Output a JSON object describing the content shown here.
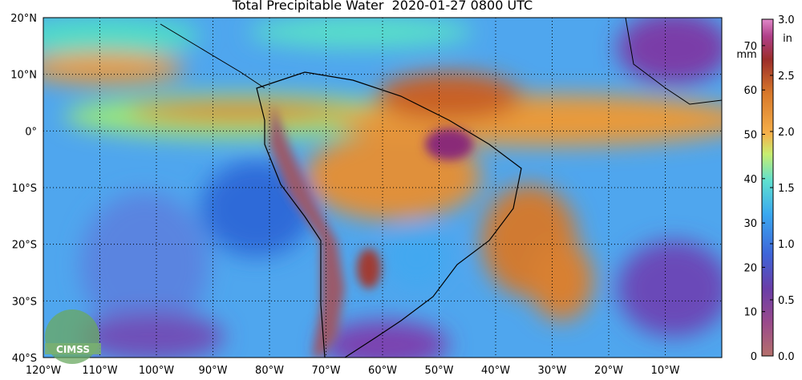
{
  "title": "Total Precipitable Water  2020-01-27 0800 UTC",
  "lat_labels": [
    "20°N",
    "10°N",
    "0°",
    "10°S",
    "20°S",
    "30°S",
    "40°S"
  ],
  "lon_labels": [
    "120°W",
    "110°W",
    "100°W",
    "90°W",
    "80°W",
    "70°W",
    "60°W",
    "50°W",
    "40°W",
    "30°W",
    "20°W",
    "10°W"
  ],
  "colorbar": {
    "mm_unit": "mm",
    "mm_ticks": [
      "0",
      "10",
      "20",
      "30",
      "40",
      "50",
      "60",
      "70"
    ],
    "in_unit": "in",
    "in_ticks": [
      "0.0",
      "0.5",
      "1.0",
      "1.5",
      "2.0",
      "2.5",
      "3.0"
    ]
  },
  "logo": "CIMSS"
}
